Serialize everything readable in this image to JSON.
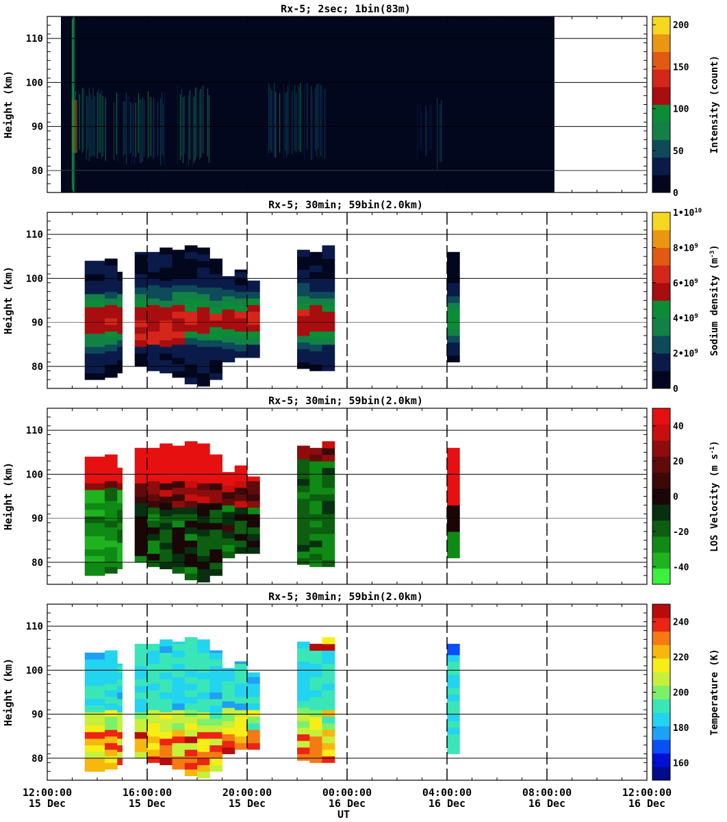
{
  "figure": {
    "x_axis_title": "UT",
    "x_ticks": [
      {
        "t": 0,
        "time": "12:00:00",
        "day": "15 Dec"
      },
      {
        "t": 4,
        "time": "16:00:00",
        "day": "15 Dec"
      },
      {
        "t": 8,
        "time": "20:00:00",
        "day": "15 Dec"
      },
      {
        "t": 12,
        "time": "00:00:00",
        "day": "16 Dec"
      },
      {
        "t": 16,
        "time": "04:00:00",
        "day": "16 Dec"
      },
      {
        "t": 20,
        "time": "08:00:00",
        "day": "16 Dec"
      },
      {
        "t": 24,
        "time": "12:00:00",
        "day": "16 Dec"
      }
    ]
  },
  "chart_data": [
    {
      "type": "heatmap",
      "title": "Rx-5;  2sec; 1bin(83m)",
      "xlabel": "UT",
      "xlim_hours_from_12UT_15Dec": [
        0,
        24
      ],
      "ylabel": "Height (km)",
      "ylim": [
        75,
        115
      ],
      "yticks": [
        80,
        90,
        100,
        110
      ],
      "colorbar": {
        "label": "Intensity (count)",
        "range": [
          0,
          210
        ],
        "ticks": [
          "0",
          "50",
          "100",
          "150",
          "200"
        ],
        "colors": [
          "#03071e",
          "#0a1b4a",
          "#0d4a5a",
          "#138046",
          "#0b8c36",
          "#a80d10",
          "#d4261a",
          "#e05a12",
          "#ea9612",
          "#f7d820"
        ]
      },
      "background": "#03071e",
      "data_extent_hours": [
        0,
        20.3
      ],
      "bright_bursts_hours": [
        [
          0.9,
          1.0
        ]
      ],
      "bands": [
        {
          "x0": 0.95,
          "x1": 2.35,
          "y0": 83.5,
          "y1": 97.5,
          "intensity": 60
        },
        {
          "x0": 2.6,
          "x1": 4.95,
          "y0": 82.5,
          "y1": 96.5,
          "intensity": 55
        },
        {
          "x0": 5.2,
          "x1": 6.5,
          "y0": 82.5,
          "y1": 98.0,
          "intensity": 60
        },
        {
          "x0": 8.8,
          "x1": 11.2,
          "y0": 83.5,
          "y1": 99.0,
          "intensity": 55
        },
        {
          "x0": 14.7,
          "x1": 15.4,
          "y0": 84.0,
          "y1": 94.0,
          "intensity": 35
        },
        {
          "x0": 15.6,
          "x1": 15.9,
          "y0": 81.0,
          "y1": 96.0,
          "intensity": 50
        },
        {
          "x0": 17.3,
          "x1": 17.4,
          "y0": 84.0,
          "y1": 88.0,
          "intensity": 25
        }
      ]
    },
    {
      "type": "heatmap",
      "title": "Rx-5; 30min; 59bin(2.0km)",
      "ylabel": "Height (km)",
      "ylim": [
        75,
        115
      ],
      "yticks": [
        80,
        90,
        100,
        110
      ],
      "colorbar": {
        "label": "Sodium density (m^-3)",
        "range": [
          0,
          10000000000.0
        ],
        "ticks": [
          "0",
          "2•10^9",
          "4•10^9",
          "6•10^9",
          "8•10^9",
          "1•10^10"
        ],
        "colors": [
          "#03071e",
          "#0a1b4a",
          "#0d4a5a",
          "#138046",
          "#0b8c36",
          "#a80d10",
          "#d4261a",
          "#e05a12",
          "#ea9612",
          "#f7d820"
        ]
      },
      "columns": [
        {
          "x0": 1.5,
          "x1": 2.3,
          "bot": 77.0,
          "top": 104.0
        },
        {
          "x0": 2.3,
          "x1": 2.8,
          "bot": 77.5,
          "top": 104.5
        },
        {
          "x0": 2.8,
          "x1": 3.0,
          "bot": 78.5,
          "top": 101.5
        },
        {
          "x0": 3.5,
          "x1": 4.0,
          "bot": 80.0,
          "top": 106.0
        },
        {
          "x0": 4.0,
          "x1": 4.5,
          "bot": 79.0,
          "top": 106.0
        },
        {
          "x0": 4.5,
          "x1": 5.0,
          "bot": 78.5,
          "top": 107.0
        },
        {
          "x0": 5.0,
          "x1": 5.5,
          "bot": 77.5,
          "top": 106.5
        },
        {
          "x0": 5.5,
          "x1": 6.0,
          "bot": 76.0,
          "top": 107.5
        },
        {
          "x0": 6.0,
          "x1": 6.5,
          "bot": 75.5,
          "top": 107.0
        },
        {
          "x0": 6.5,
          "x1": 7.0,
          "bot": 77.0,
          "top": 104.5
        },
        {
          "x0": 7.0,
          "x1": 7.5,
          "bot": 81.0,
          "top": 100.5
        },
        {
          "x0": 7.5,
          "x1": 8.0,
          "bot": 82.0,
          "top": 102.0
        },
        {
          "x0": 8.0,
          "x1": 8.5,
          "bot": 82.0,
          "top": 99.5
        },
        {
          "x0": 10.0,
          "x1": 10.5,
          "bot": 79.5,
          "top": 106.5
        },
        {
          "x0": 10.5,
          "x1": 11.0,
          "bot": 79.0,
          "top": 106.0
        },
        {
          "x0": 11.0,
          "x1": 11.5,
          "bot": 79.0,
          "top": 107.5
        },
        {
          "x0": 16.0,
          "x1": 16.5,
          "bot": 81.0,
          "top": 106.0
        }
      ]
    },
    {
      "type": "heatmap",
      "title": "Rx-5; 30min; 59bin(2.0km)",
      "ylabel": "Height (km)",
      "ylim": [
        75,
        115
      ],
      "yticks": [
        80,
        90,
        100,
        110
      ],
      "colorbar": {
        "label": "LOS Velocity (m s^-1)",
        "range": [
          -50,
          50
        ],
        "ticks": [
          "-40",
          "-20",
          "0",
          "20",
          "40"
        ],
        "colors": [
          "#3cf03c",
          "#1fb31f",
          "#0f8a14",
          "#0d5e10",
          "#063010",
          "#1a0606",
          "#3c0808",
          "#600b0b",
          "#8e0c0c",
          "#c80e0e",
          "#e61010"
        ]
      },
      "note": "positive velocities above ~95 km, negative below ~90 km; second burst mostly negative"
    },
    {
      "type": "heatmap",
      "title": "Rx-5; 30min; 59bin(2.0km)",
      "ylabel": "Height (km)",
      "ylim": [
        75,
        115
      ],
      "yticks": [
        80,
        90,
        100,
        110
      ],
      "colorbar": {
        "label": "Temperature (K)",
        "range": [
          150,
          250
        ],
        "ticks": [
          "160",
          "180",
          "200",
          "220",
          "240"
        ],
        "colors": [
          "#000c8a",
          "#0010d6",
          "#0a4ff5",
          "#1ea0f5",
          "#22d4f0",
          "#3ae6b8",
          "#7df06a",
          "#c6f03c",
          "#f7ee16",
          "#f7b80e",
          "#f57a12",
          "#ec2414",
          "#b80c0c"
        ]
      },
      "note": "cooler (~180 K) above 90 km; warmer 210–240 K below 85 km"
    }
  ],
  "panels_meta": [
    {
      "top": 24,
      "bottom": 281
    },
    {
      "top": 310,
      "bottom": 567
    },
    {
      "top": 596,
      "bottom": 853
    },
    {
      "top": 882,
      "bottom": 1139
    }
  ]
}
